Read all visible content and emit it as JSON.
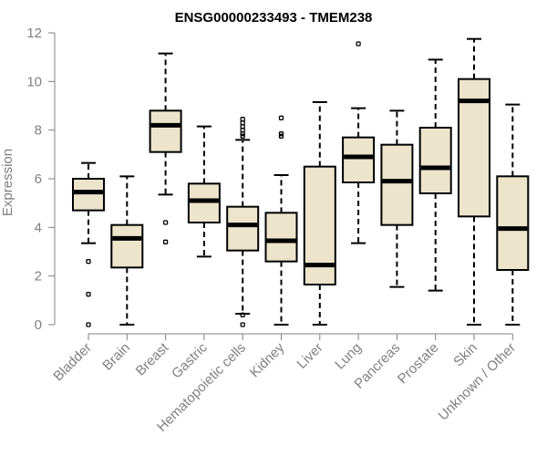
{
  "chart_data": {
    "type": "boxplot",
    "title": "ENSG00000233493 - TMEM238",
    "xlabel": "",
    "ylabel": "Expression",
    "ylim": [
      0,
      12
    ],
    "yticks": [
      0,
      2,
      4,
      6,
      8,
      10,
      12
    ],
    "categories": [
      "Bladder",
      "Brain",
      "Breast",
      "Gastric",
      "Hematopoietic cells",
      "Kidney",
      "Liver",
      "Lung",
      "Pancreas",
      "Prostate",
      "Skin",
      "Unknown / Other"
    ],
    "boxes": [
      {
        "category": "Bladder",
        "min": 3.35,
        "q1": 4.7,
        "median": 5.45,
        "q3": 6.0,
        "max": 6.65,
        "outliers": [
          2.6,
          1.25,
          0.0
        ]
      },
      {
        "category": "Brain",
        "min": 0.0,
        "q1": 2.35,
        "median": 3.55,
        "q3": 4.1,
        "max": 6.1,
        "outliers": []
      },
      {
        "category": "Breast",
        "min": 5.35,
        "q1": 7.1,
        "median": 8.2,
        "q3": 8.8,
        "max": 11.15,
        "outliers": [
          4.2,
          3.4
        ]
      },
      {
        "category": "Gastric",
        "min": 2.8,
        "q1": 4.2,
        "median": 5.1,
        "q3": 5.8,
        "max": 8.15,
        "outliers": []
      },
      {
        "category": "Hematopoietic cells",
        "min": 0.45,
        "q1": 3.05,
        "median": 4.1,
        "q3": 4.85,
        "max": 7.6,
        "outliers": [
          8.45,
          8.3,
          8.15,
          8.0,
          7.85,
          7.75,
          0.4,
          0.0
        ]
      },
      {
        "category": "Kidney",
        "min": 0.0,
        "q1": 2.6,
        "median": 3.45,
        "q3": 4.6,
        "max": 6.15,
        "outliers": [
          8.5,
          7.85,
          7.75
        ]
      },
      {
        "category": "Liver",
        "min": 0.0,
        "q1": 1.65,
        "median": 2.45,
        "q3": 6.5,
        "max": 9.15,
        "outliers": []
      },
      {
        "category": "Lung",
        "min": 3.35,
        "q1": 5.85,
        "median": 6.9,
        "q3": 7.7,
        "max": 8.9,
        "outliers": [
          11.55
        ]
      },
      {
        "category": "Pancreas",
        "min": 1.55,
        "q1": 4.1,
        "median": 5.9,
        "q3": 7.4,
        "max": 8.8,
        "outliers": []
      },
      {
        "category": "Prostate",
        "min": 1.4,
        "q1": 5.4,
        "median": 6.45,
        "q3": 8.1,
        "max": 10.9,
        "outliers": []
      },
      {
        "category": "Skin",
        "min": 0.0,
        "q1": 4.45,
        "median": 9.2,
        "q3": 10.1,
        "max": 11.75,
        "outliers": []
      },
      {
        "category": "Unknown / Other",
        "min": 0.0,
        "q1": 2.25,
        "median": 3.95,
        "q3": 6.1,
        "max": 9.05,
        "outliers": []
      }
    ],
    "box_fill": "#ede4cc",
    "axis_color": "#808080",
    "grid": false
  }
}
